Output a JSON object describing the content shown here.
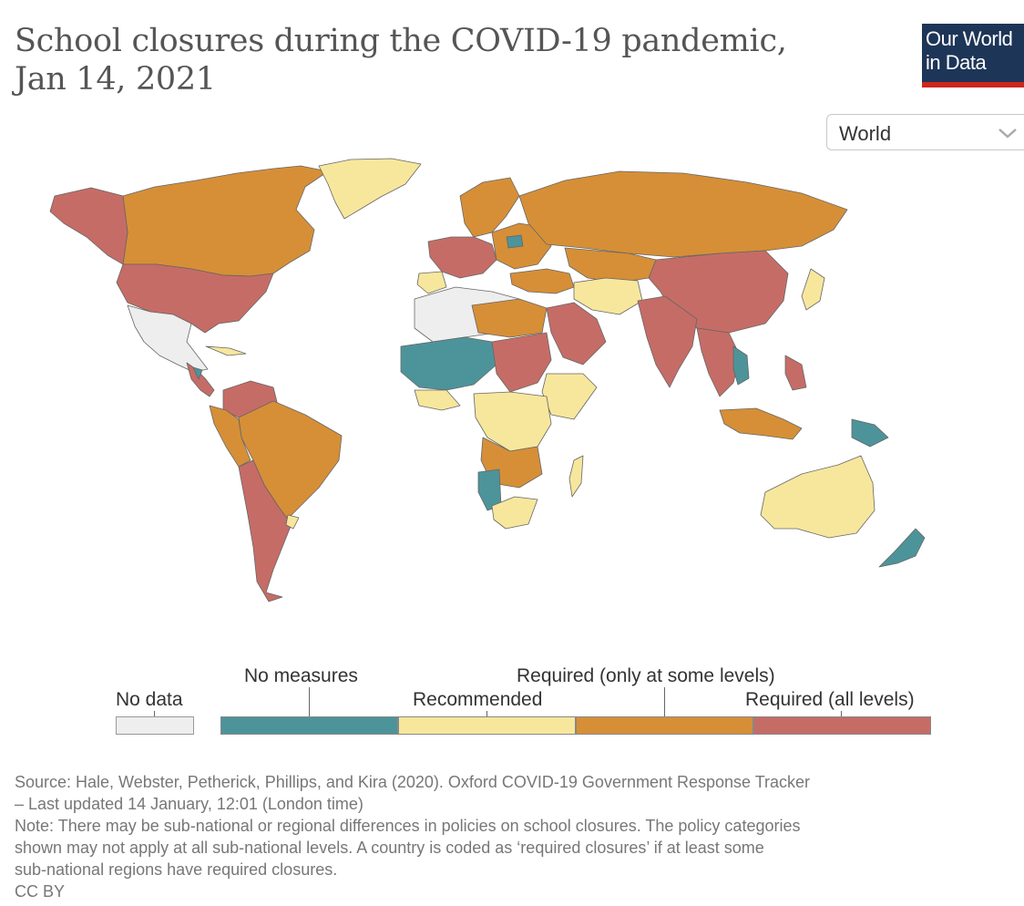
{
  "title": "School closures during the COVID-19 pandemic, Jan 14, 2021",
  "logo": {
    "line1": "Our World",
    "line2": "in Data"
  },
  "region_selector": {
    "selected": "World"
  },
  "legend": {
    "no_data": {
      "label": "No data",
      "color": "#eeeeee"
    },
    "categories": [
      {
        "label": "No measures",
        "color": "#4c949a"
      },
      {
        "label": "Recommended",
        "color": "#f7e79d"
      },
      {
        "label": "Required (only at some levels)",
        "color": "#d68f37"
      },
      {
        "label": "Required (all levels)",
        "color": "#c66c66"
      }
    ]
  },
  "footer": {
    "source": "Source: Hale, Webster, Petherick, Phillips, and Kira (2020). Oxford COVID-19 Government Response Tracker",
    "updated": "– Last updated 14 January, 12:01 (London time)",
    "note1": "Note: There may be sub-national or regional differences in policies on school closures. The policy categories",
    "note2": "shown may not apply at all sub-national levels. A country is coded as ‘required closures’ if at least some",
    "note3": "sub-national regions have required closures.",
    "license": "CC BY"
  },
  "colors": {
    "no_data": "#eeeeee",
    "no_measures": "#4c949a",
    "recommended": "#f7e79d",
    "required_some": "#d68f37",
    "required_all": "#c66c66",
    "border": "#666666"
  }
}
